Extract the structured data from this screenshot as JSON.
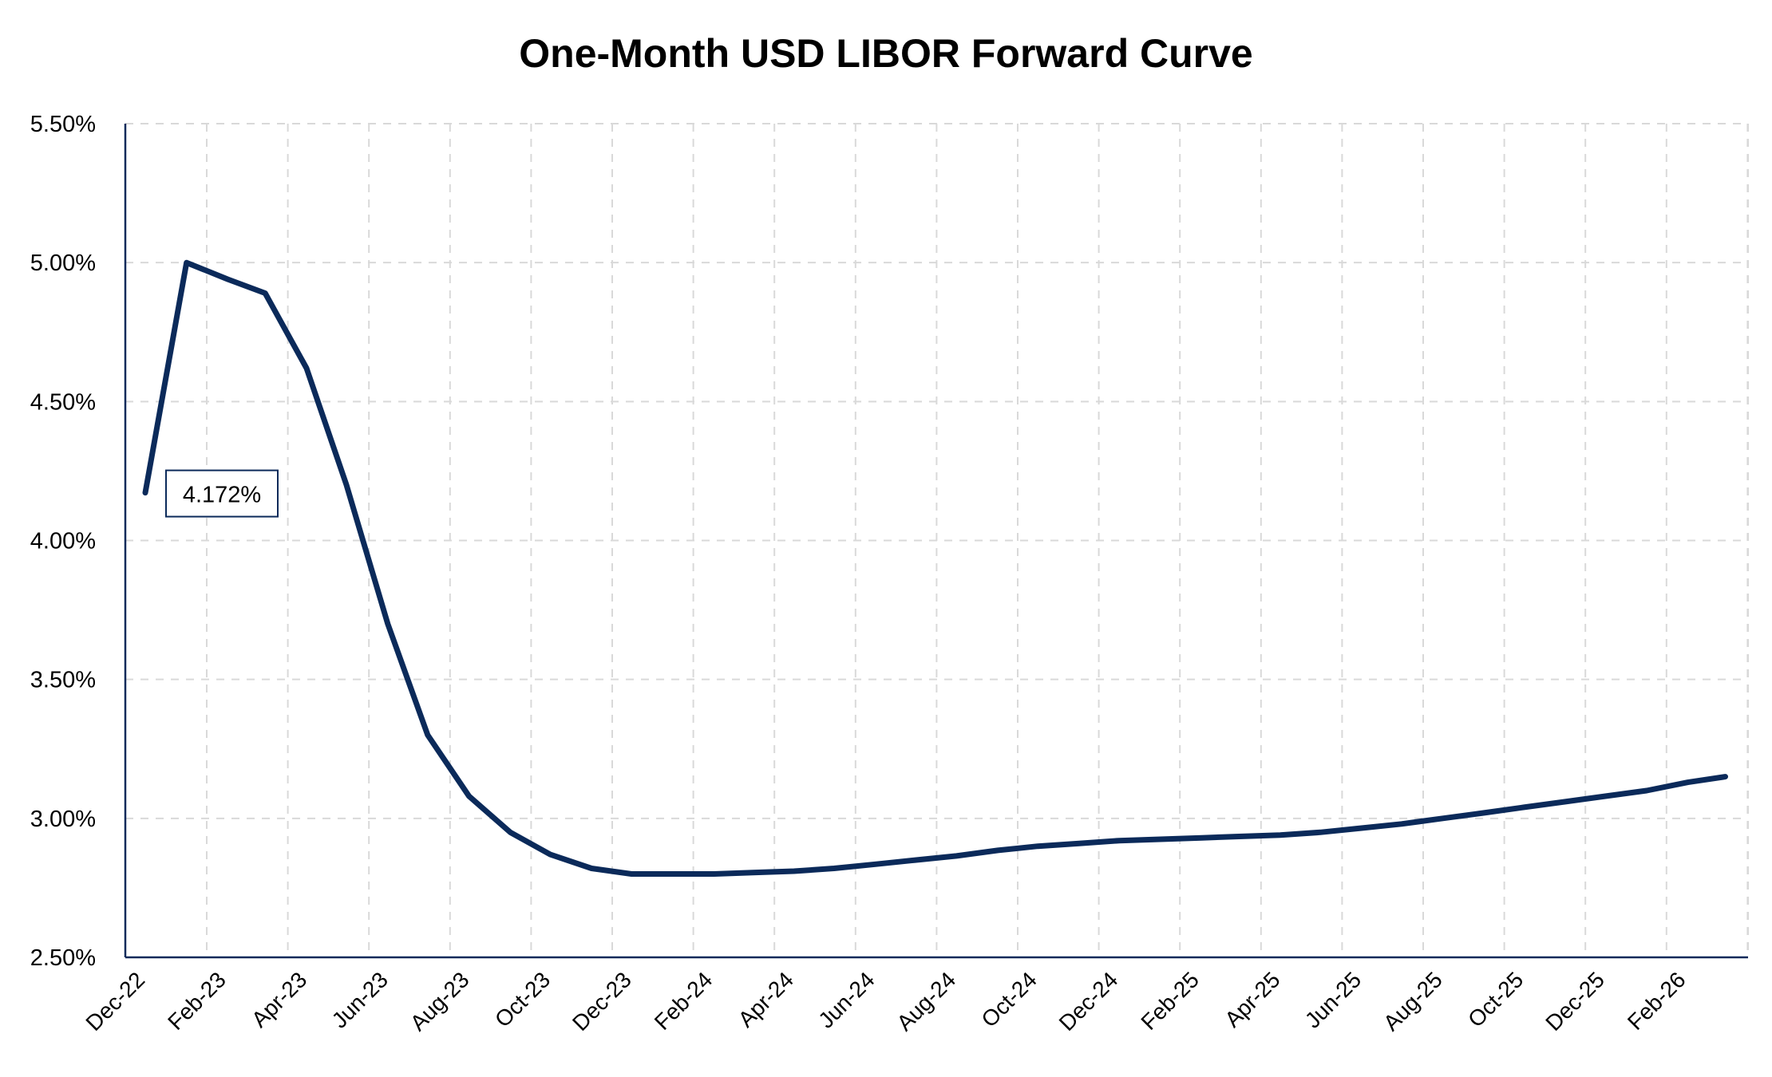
{
  "chart_data": {
    "type": "line",
    "title": "One-Month USD LIBOR Forward Curve",
    "xlabel": "",
    "ylabel": "",
    "ylim": [
      2.5,
      5.5
    ],
    "yticks": [
      "2.50%",
      "3.00%",
      "3.50%",
      "4.00%",
      "4.50%",
      "5.00%",
      "5.50%"
    ],
    "ytick_values": [
      2.5,
      3.0,
      3.5,
      4.0,
      4.5,
      5.0,
      5.5
    ],
    "xticks": [
      "Dec-22",
      "Feb-23",
      "Apr-23",
      "Jun-23",
      "Aug-23",
      "Oct-23",
      "Dec-23",
      "Feb-24",
      "Apr-24",
      "Jun-24",
      "Aug-24",
      "Oct-24",
      "Dec-24",
      "Feb-25",
      "Apr-25",
      "Jun-25",
      "Aug-25",
      "Oct-25",
      "Dec-25",
      "Feb-26"
    ],
    "grid": true,
    "series": [
      {
        "color": "#0b2a5a",
        "x": [
          "2022-12-15",
          "2023-01-15",
          "2023-02-15",
          "2023-03-15",
          "2023-04-15",
          "2023-05-15",
          "2023-06-15",
          "2023-07-15",
          "2023-08-15",
          "2023-09-15",
          "2023-10-15",
          "2023-11-15",
          "2023-12-15",
          "2024-01-15",
          "2024-02-15",
          "2024-03-15",
          "2024-04-15",
          "2024-05-15",
          "2024-06-15",
          "2024-07-15",
          "2024-08-15",
          "2024-09-15",
          "2024-10-15",
          "2024-11-15",
          "2024-12-15",
          "2025-01-15",
          "2025-02-15",
          "2025-03-15",
          "2025-04-15",
          "2025-05-15",
          "2025-06-15",
          "2025-07-15",
          "2025-08-15",
          "2025-09-15",
          "2025-10-15",
          "2025-11-15",
          "2025-12-15",
          "2026-01-15",
          "2026-02-15",
          "2026-03-15"
        ],
        "values": [
          4.172,
          5.0,
          4.94,
          4.89,
          4.62,
          4.2,
          3.7,
          3.3,
          3.08,
          2.95,
          2.87,
          2.82,
          2.8,
          2.8,
          2.8,
          2.805,
          2.81,
          2.82,
          2.835,
          2.85,
          2.865,
          2.885,
          2.9,
          2.91,
          2.92,
          2.925,
          2.93,
          2.935,
          2.94,
          2.95,
          2.965,
          2.98,
          3.0,
          3.02,
          3.04,
          3.06,
          3.08,
          3.1,
          3.13,
          3.15
        ]
      }
    ],
    "annotations": [
      {
        "text": "4.172%",
        "x": "2022-12-15",
        "y": 4.172
      }
    ]
  }
}
